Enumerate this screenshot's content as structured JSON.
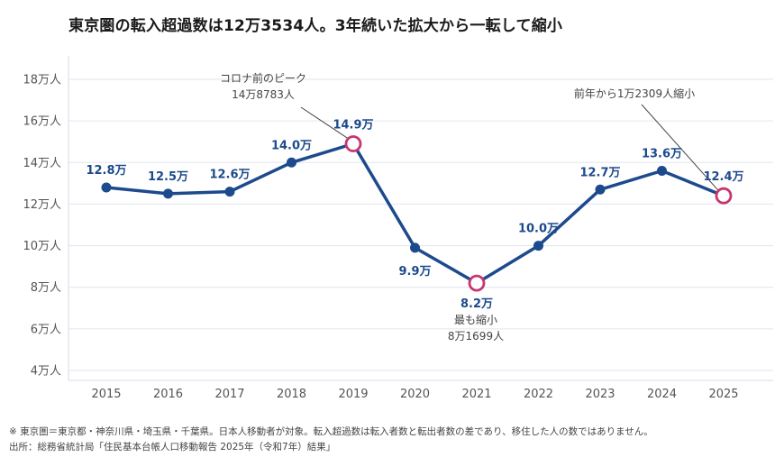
{
  "title": "東京圏の転入超過数は12万3534人。3年続いた拡大から一転して縮小",
  "footnote": "※ 東京圏＝東京都・神奈川県・埼玉県・千葉県。日本人移動者が対象。転入超過数は転入者数と転出者数の差であり、移住した人の数ではありません。",
  "source": "出所：総務省統計局「住民基本台帳人口移動報告 2025年（令和7年）結果」",
  "colors": {
    "line": "#1c4a8c",
    "highlight": "#c8356f",
    "grid": "#e1e6ee",
    "label": "#1c4a8c"
  },
  "chart_data": {
    "type": "line",
    "x": [
      "2015",
      "2016",
      "2017",
      "2018",
      "2019",
      "2020",
      "2021",
      "2022",
      "2023",
      "2024",
      "2025"
    ],
    "values": [
      12.8,
      12.5,
      12.6,
      14.0,
      14.9,
      9.9,
      8.2,
      10.0,
      12.7,
      13.6,
      12.4
    ],
    "data_labels": [
      "12.8万",
      "12.5万",
      "12.6万",
      "14.0万",
      "14.9万",
      "9.9万",
      "8.2万",
      "10.0万",
      "12.7万",
      "13.6万",
      "12.4万"
    ],
    "label_position": [
      "above",
      "above",
      "above",
      "above",
      "above",
      "below",
      "below",
      "above",
      "above",
      "above",
      "above"
    ],
    "highlight_indices": [
      4,
      6,
      10
    ],
    "ylim": [
      4,
      18
    ],
    "yticks": [
      4,
      6,
      8,
      10,
      12,
      14,
      16,
      18
    ],
    "ytick_labels": [
      "4万人",
      "6万人",
      "8万人",
      "10万人",
      "12万人",
      "14万人",
      "16万人",
      "18万人"
    ],
    "grid": "horizontal",
    "annotations": [
      {
        "index": 4,
        "lines": [
          "コロナ前のピーク",
          "14万8783人"
        ]
      },
      {
        "index": 6,
        "lines": [
          "最も縮小",
          "8万1699人"
        ]
      },
      {
        "index": 10,
        "lines": [
          "前年から1万2309人縮小"
        ]
      }
    ]
  }
}
